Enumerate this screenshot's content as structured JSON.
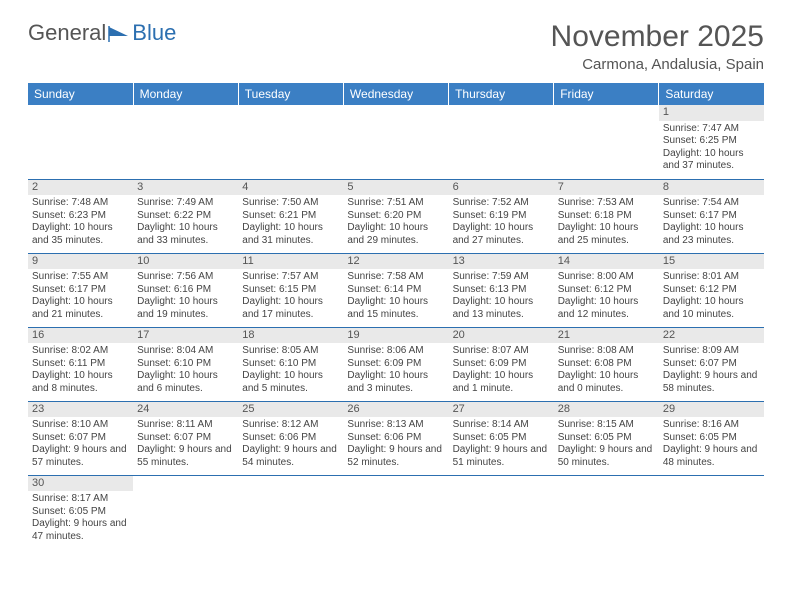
{
  "logo": {
    "text1": "General",
    "text2": "Blue"
  },
  "title": {
    "month": "November 2025",
    "location": "Carmona, Andalusia, Spain"
  },
  "colors": {
    "header_bg": "#3b7fc4",
    "header_text": "#ffffff",
    "row_divider": "#2c6fb0",
    "daynum_bg": "#e9e9e9",
    "text": "#444444",
    "logo_gray": "#555555",
    "logo_blue": "#2c6fb0"
  },
  "weekdays": [
    "Sunday",
    "Monday",
    "Tuesday",
    "Wednesday",
    "Thursday",
    "Friday",
    "Saturday"
  ],
  "weeks": [
    [
      null,
      null,
      null,
      null,
      null,
      null,
      {
        "n": "1",
        "sr": "Sunrise: 7:47 AM",
        "ss": "Sunset: 6:25 PM",
        "dl": "Daylight: 10 hours and 37 minutes."
      }
    ],
    [
      {
        "n": "2",
        "sr": "Sunrise: 7:48 AM",
        "ss": "Sunset: 6:23 PM",
        "dl": "Daylight: 10 hours and 35 minutes."
      },
      {
        "n": "3",
        "sr": "Sunrise: 7:49 AM",
        "ss": "Sunset: 6:22 PM",
        "dl": "Daylight: 10 hours and 33 minutes."
      },
      {
        "n": "4",
        "sr": "Sunrise: 7:50 AM",
        "ss": "Sunset: 6:21 PM",
        "dl": "Daylight: 10 hours and 31 minutes."
      },
      {
        "n": "5",
        "sr": "Sunrise: 7:51 AM",
        "ss": "Sunset: 6:20 PM",
        "dl": "Daylight: 10 hours and 29 minutes."
      },
      {
        "n": "6",
        "sr": "Sunrise: 7:52 AM",
        "ss": "Sunset: 6:19 PM",
        "dl": "Daylight: 10 hours and 27 minutes."
      },
      {
        "n": "7",
        "sr": "Sunrise: 7:53 AM",
        "ss": "Sunset: 6:18 PM",
        "dl": "Daylight: 10 hours and 25 minutes."
      },
      {
        "n": "8",
        "sr": "Sunrise: 7:54 AM",
        "ss": "Sunset: 6:17 PM",
        "dl": "Daylight: 10 hours and 23 minutes."
      }
    ],
    [
      {
        "n": "9",
        "sr": "Sunrise: 7:55 AM",
        "ss": "Sunset: 6:17 PM",
        "dl": "Daylight: 10 hours and 21 minutes."
      },
      {
        "n": "10",
        "sr": "Sunrise: 7:56 AM",
        "ss": "Sunset: 6:16 PM",
        "dl": "Daylight: 10 hours and 19 minutes."
      },
      {
        "n": "11",
        "sr": "Sunrise: 7:57 AM",
        "ss": "Sunset: 6:15 PM",
        "dl": "Daylight: 10 hours and 17 minutes."
      },
      {
        "n": "12",
        "sr": "Sunrise: 7:58 AM",
        "ss": "Sunset: 6:14 PM",
        "dl": "Daylight: 10 hours and 15 minutes."
      },
      {
        "n": "13",
        "sr": "Sunrise: 7:59 AM",
        "ss": "Sunset: 6:13 PM",
        "dl": "Daylight: 10 hours and 13 minutes."
      },
      {
        "n": "14",
        "sr": "Sunrise: 8:00 AM",
        "ss": "Sunset: 6:12 PM",
        "dl": "Daylight: 10 hours and 12 minutes."
      },
      {
        "n": "15",
        "sr": "Sunrise: 8:01 AM",
        "ss": "Sunset: 6:12 PM",
        "dl": "Daylight: 10 hours and 10 minutes."
      }
    ],
    [
      {
        "n": "16",
        "sr": "Sunrise: 8:02 AM",
        "ss": "Sunset: 6:11 PM",
        "dl": "Daylight: 10 hours and 8 minutes."
      },
      {
        "n": "17",
        "sr": "Sunrise: 8:04 AM",
        "ss": "Sunset: 6:10 PM",
        "dl": "Daylight: 10 hours and 6 minutes."
      },
      {
        "n": "18",
        "sr": "Sunrise: 8:05 AM",
        "ss": "Sunset: 6:10 PM",
        "dl": "Daylight: 10 hours and 5 minutes."
      },
      {
        "n": "19",
        "sr": "Sunrise: 8:06 AM",
        "ss": "Sunset: 6:09 PM",
        "dl": "Daylight: 10 hours and 3 minutes."
      },
      {
        "n": "20",
        "sr": "Sunrise: 8:07 AM",
        "ss": "Sunset: 6:09 PM",
        "dl": "Daylight: 10 hours and 1 minute."
      },
      {
        "n": "21",
        "sr": "Sunrise: 8:08 AM",
        "ss": "Sunset: 6:08 PM",
        "dl": "Daylight: 10 hours and 0 minutes."
      },
      {
        "n": "22",
        "sr": "Sunrise: 8:09 AM",
        "ss": "Sunset: 6:07 PM",
        "dl": "Daylight: 9 hours and 58 minutes."
      }
    ],
    [
      {
        "n": "23",
        "sr": "Sunrise: 8:10 AM",
        "ss": "Sunset: 6:07 PM",
        "dl": "Daylight: 9 hours and 57 minutes."
      },
      {
        "n": "24",
        "sr": "Sunrise: 8:11 AM",
        "ss": "Sunset: 6:07 PM",
        "dl": "Daylight: 9 hours and 55 minutes."
      },
      {
        "n": "25",
        "sr": "Sunrise: 8:12 AM",
        "ss": "Sunset: 6:06 PM",
        "dl": "Daylight: 9 hours and 54 minutes."
      },
      {
        "n": "26",
        "sr": "Sunrise: 8:13 AM",
        "ss": "Sunset: 6:06 PM",
        "dl": "Daylight: 9 hours and 52 minutes."
      },
      {
        "n": "27",
        "sr": "Sunrise: 8:14 AM",
        "ss": "Sunset: 6:05 PM",
        "dl": "Daylight: 9 hours and 51 minutes."
      },
      {
        "n": "28",
        "sr": "Sunrise: 8:15 AM",
        "ss": "Sunset: 6:05 PM",
        "dl": "Daylight: 9 hours and 50 minutes."
      },
      {
        "n": "29",
        "sr": "Sunrise: 8:16 AM",
        "ss": "Sunset: 6:05 PM",
        "dl": "Daylight: 9 hours and 48 minutes."
      }
    ],
    [
      {
        "n": "30",
        "sr": "Sunrise: 8:17 AM",
        "ss": "Sunset: 6:05 PM",
        "dl": "Daylight: 9 hours and 47 minutes."
      },
      null,
      null,
      null,
      null,
      null,
      null
    ]
  ]
}
